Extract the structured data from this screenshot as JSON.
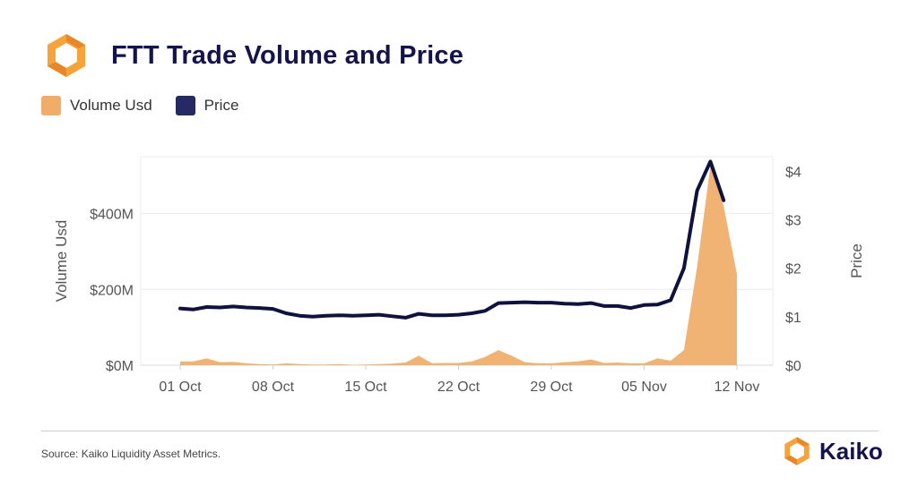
{
  "header": {
    "title": "FTT Trade Volume and Price",
    "logo_icon": "kaiko-logo-icon"
  },
  "legend": {
    "items": [
      {
        "label": "Volume Usd",
        "color": "#f0ac68"
      },
      {
        "label": "Price",
        "color": "#252a64"
      }
    ]
  },
  "chart_data": {
    "type": "area+line",
    "title": "FTT Trade Volume and Price",
    "xlabel": "",
    "y_left_label": "Volume Usd",
    "y_right_label": "Price",
    "x_ticks": [
      "01 Oct",
      "08 Oct",
      "15 Oct",
      "22 Oct",
      "29 Oct",
      "05 Nov",
      "12 Nov"
    ],
    "y_left_ticks": [
      "$0M",
      "$200M",
      "$400M"
    ],
    "y_right_ticks": [
      "$0",
      "$1",
      "$2",
      "$3",
      "$4"
    ],
    "y_left_range": [
      0,
      550
    ],
    "y_right_range": [
      0,
      4.3
    ],
    "dates": [
      "Oct 1",
      "Oct 2",
      "Oct 3",
      "Oct 4",
      "Oct 5",
      "Oct 6",
      "Oct 7",
      "Oct 8",
      "Oct 9",
      "Oct 10",
      "Oct 11",
      "Oct 12",
      "Oct 13",
      "Oct 14",
      "Oct 15",
      "Oct 16",
      "Oct 17",
      "Oct 18",
      "Oct 19",
      "Oct 20",
      "Oct 21",
      "Oct 22",
      "Oct 23",
      "Oct 24",
      "Oct 25",
      "Oct 26",
      "Oct 27",
      "Oct 28",
      "Oct 29",
      "Oct 30",
      "Oct 31",
      "Nov 1",
      "Nov 2",
      "Nov 3",
      "Nov 4",
      "Nov 5",
      "Nov 6",
      "Nov 7",
      "Nov 8",
      "Nov 9",
      "Nov 10",
      "Nov 11",
      "Nov 12"
    ],
    "series": [
      {
        "name": "Volume Usd",
        "type": "area",
        "axis": "left",
        "color": "#f0ac68",
        "values": [
          10,
          10,
          18,
          8,
          9,
          5,
          3,
          2,
          5,
          3,
          2,
          2,
          3,
          1,
          2,
          3,
          4,
          7,
          25,
          5,
          6,
          6,
          10,
          22,
          40,
          25,
          8,
          5,
          5,
          8,
          10,
          15,
          6,
          7,
          5,
          5,
          18,
          12,
          40,
          260,
          525,
          420,
          240
        ]
      },
      {
        "name": "Price",
        "type": "line",
        "axis": "right",
        "color": "#0f123d",
        "values": [
          1.17,
          1.15,
          1.2,
          1.19,
          1.21,
          1.19,
          1.18,
          1.16,
          1.07,
          1.02,
          1.0,
          1.02,
          1.03,
          1.02,
          1.03,
          1.04,
          1.01,
          0.98,
          1.06,
          1.03,
          1.03,
          1.04,
          1.07,
          1.12,
          1.28,
          1.29,
          1.3,
          1.29,
          1.29,
          1.27,
          1.26,
          1.28,
          1.22,
          1.22,
          1.18,
          1.24,
          1.25,
          1.34,
          2.0,
          3.6,
          4.2,
          3.4,
          null
        ]
      }
    ],
    "grid": true,
    "legend_position": "top-left"
  },
  "footer": {
    "source": "Source: Kaiko Liquidity Asset Metrics.",
    "brand_name": "Kaiko",
    "brand_icon": "kaiko-logo-icon"
  }
}
